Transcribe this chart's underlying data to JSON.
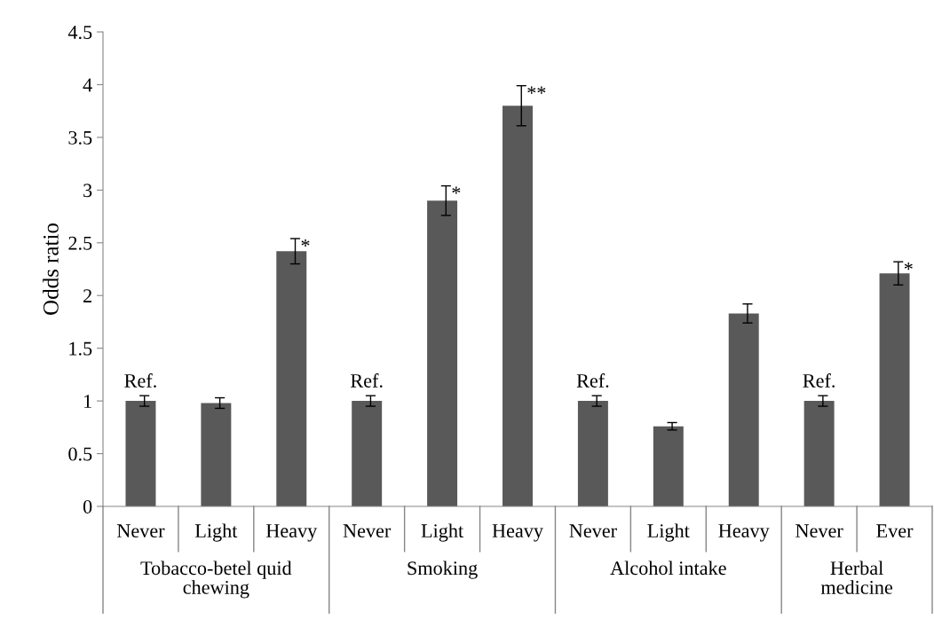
{
  "chart_data": {
    "type": "bar",
    "ylabel": "Odds ratio",
    "categories": [
      "Never",
      "Light",
      "Heavy",
      "Never",
      "Light",
      "Heavy",
      "Never",
      "Light",
      "Heavy",
      "Never",
      "Ever"
    ],
    "values": [
      1,
      0.98,
      2.42,
      1,
      2.9,
      3.8,
      1,
      0.76,
      1.83,
      1,
      2.21
    ],
    "errors": [
      0.05,
      0.05,
      0.12,
      0.05,
      0.14,
      0.19,
      0.05,
      0.035,
      0.09,
      0.05,
      0.11
    ],
    "value_labels": [
      "Ref.",
      null,
      "*",
      "Ref.",
      "*",
      "**",
      "Ref.",
      null,
      null,
      "Ref.",
      "*"
    ],
    "color": "#595959",
    "annotations": [
      "Tobacco-betel quid\nchewing",
      "Smoking",
      "Alcohol intake",
      "Herbal\nmedicine"
    ],
    "ylim": [
      0,
      4.5
    ],
    "yticks": [
      0,
      0.5,
      1,
      1.5,
      2,
      2.5,
      3,
      3.5,
      4,
      4.5
    ],
    "grid": false,
    "legend": false
  }
}
